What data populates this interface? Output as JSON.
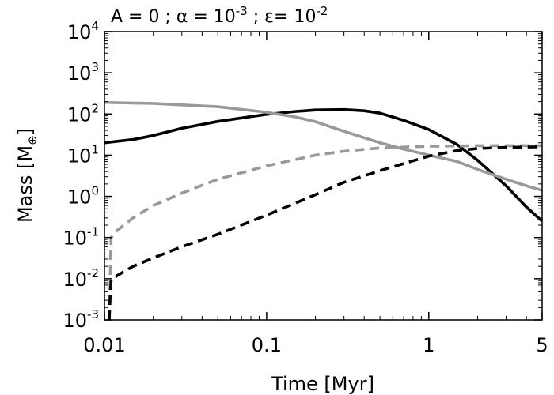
{
  "chart_data": {
    "type": "line",
    "title_parts": [
      "A = 0 ; α = 10",
      "-3",
      " ;  ε= 10",
      "-2"
    ],
    "xlabel": "Time [Myr]",
    "ylabel_main": "Mass [M",
    "ylabel_symbol": "⊕",
    "ylabel_close": "]",
    "x_scale": "log",
    "y_scale": "log",
    "xlim": [
      0.01,
      5
    ],
    "ylim": [
      0.001,
      10000
    ],
    "x_ticks": [
      {
        "value": 0.01,
        "label": "0.01"
      },
      {
        "value": 0.1,
        "label": "0.1"
      },
      {
        "value": 1,
        "label": "1"
      },
      {
        "value": 5,
        "label": "5"
      }
    ],
    "y_ticks": [
      {
        "value": 0.001,
        "base": "10",
        "exp": "-3"
      },
      {
        "value": 0.01,
        "base": "10",
        "exp": "-2"
      },
      {
        "value": 0.1,
        "base": "10",
        "exp": "-1"
      },
      {
        "value": 1,
        "base": "10",
        "exp": "0"
      },
      {
        "value": 10,
        "base": "10",
        "exp": "1"
      },
      {
        "value": 100,
        "base": "10",
        "exp": "2"
      },
      {
        "value": 1000,
        "base": "10",
        "exp": "3"
      },
      {
        "value": 10000,
        "base": "10",
        "exp": "4"
      }
    ],
    "series": [
      {
        "name": "black-solid",
        "color": "#000000",
        "dash": "solid",
        "x": [
          0.01,
          0.015,
          0.02,
          0.03,
          0.05,
          0.1,
          0.15,
          0.2,
          0.3,
          0.4,
          0.5,
          0.7,
          1.0,
          1.5,
          2.0,
          3.0,
          4.0,
          5.0
        ],
        "y": [
          20,
          24,
          30,
          45,
          66,
          98,
          115,
          125,
          128,
          120,
          105,
          70,
          42,
          18,
          7.5,
          1.8,
          0.55,
          0.25
        ]
      },
      {
        "name": "gray-solid",
        "color": "#999999",
        "dash": "solid",
        "x": [
          0.01,
          0.02,
          0.05,
          0.1,
          0.15,
          0.2,
          0.3,
          0.5,
          0.7,
          1.0,
          1.5,
          2.0,
          3.0,
          4.0,
          5.0
        ],
        "y": [
          190,
          180,
          150,
          110,
          85,
          65,
          38,
          20,
          14,
          10,
          7,
          4.5,
          2.6,
          1.8,
          1.4
        ]
      },
      {
        "name": "gray-dashed",
        "color": "#999999",
        "dash": "dashed",
        "x": [
          0.0107,
          0.0108,
          0.0109,
          0.011,
          0.012,
          0.015,
          0.02,
          0.03,
          0.05,
          0.1,
          0.2,
          0.3,
          0.5,
          1.0,
          2.0,
          3.0,
          5.0
        ],
        "y": [
          0.001,
          0.003,
          0.03,
          0.1,
          0.15,
          0.3,
          0.6,
          1.2,
          2.6,
          5.5,
          10,
          12.5,
          15,
          16.5,
          17,
          17,
          17
        ]
      },
      {
        "name": "black-dashed",
        "color": "#000000",
        "dash": "dashed",
        "x": [
          0.0107,
          0.0108,
          0.0109,
          0.011,
          0.012,
          0.015,
          0.02,
          0.03,
          0.05,
          0.1,
          0.2,
          0.3,
          0.5,
          1.0,
          1.5,
          2.0,
          3.0,
          5.0
        ],
        "y": [
          0.001,
          0.0025,
          0.006,
          0.009,
          0.012,
          0.02,
          0.032,
          0.06,
          0.12,
          0.35,
          1.1,
          2.2,
          4.2,
          9.5,
          13,
          14.5,
          15.5,
          16
        ]
      }
    ]
  }
}
